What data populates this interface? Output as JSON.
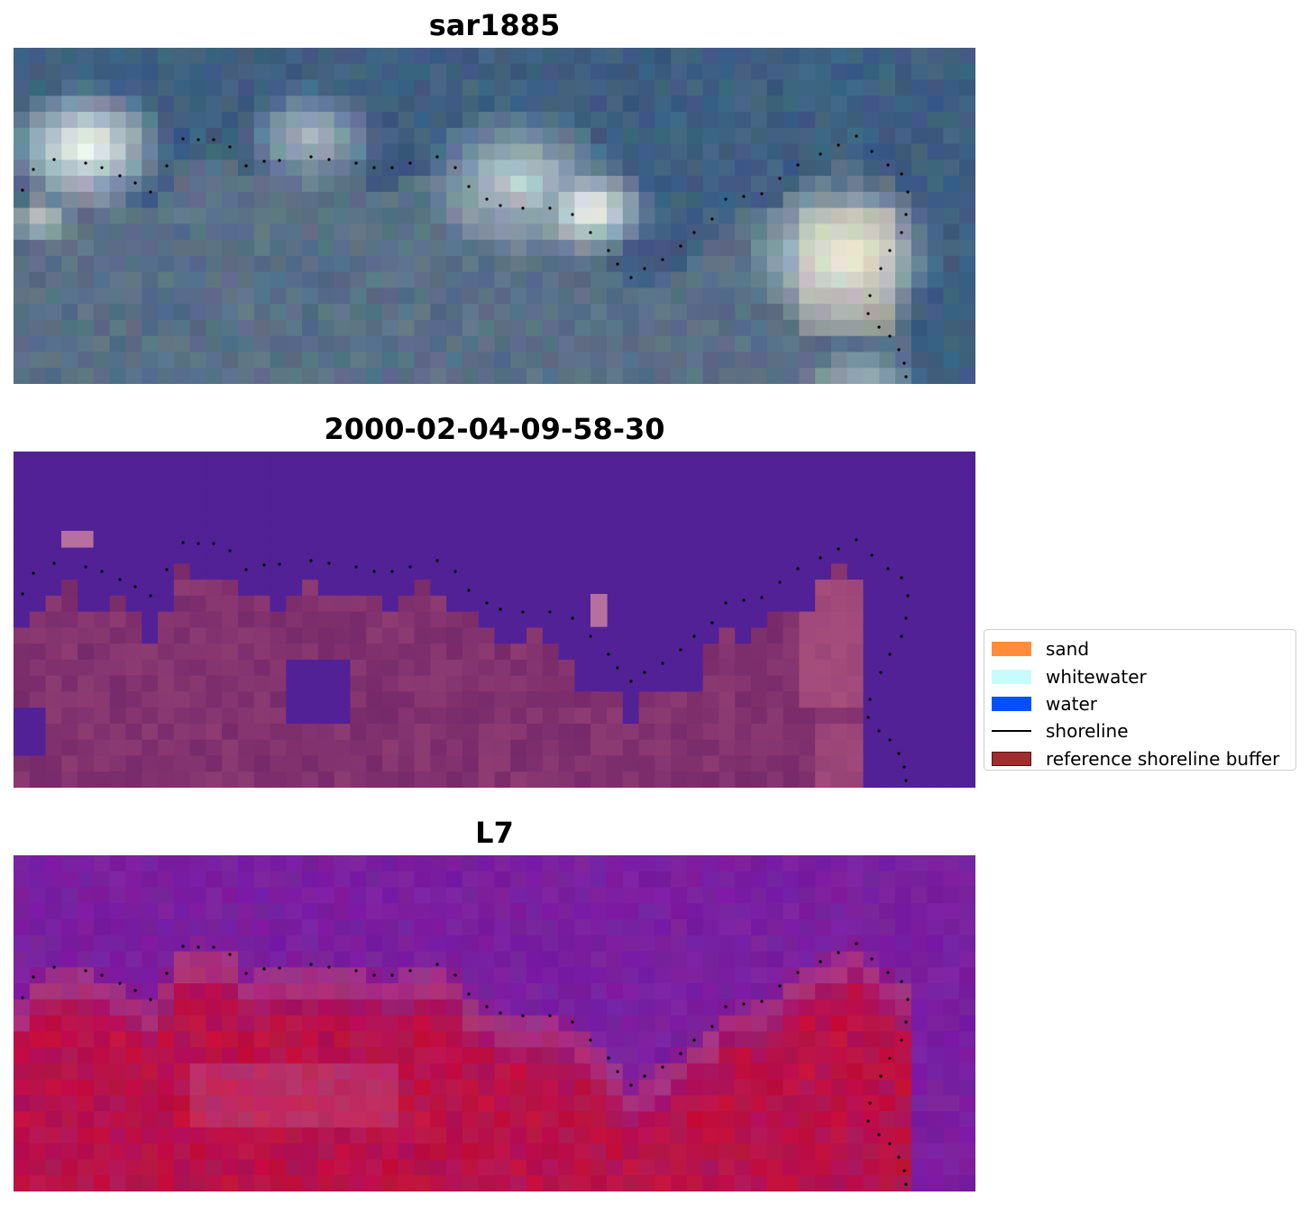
{
  "panels": [
    {
      "title": "sar1885"
    },
    {
      "title": "2000-02-04-09-58-30"
    },
    {
      "title": "L7"
    }
  ],
  "legend": {
    "items": [
      {
        "label": "sand",
        "color": "#ff8c3a",
        "kind": "patch"
      },
      {
        "label": "whitewater",
        "color": "#c8fcfc",
        "kind": "patch"
      },
      {
        "label": "water",
        "color": "#0050ff",
        "kind": "patch"
      },
      {
        "label": "shoreline",
        "color": "#000000",
        "kind": "line"
      },
      {
        "label": "reference shoreline buffer",
        "color": "#a02d2d",
        "kind": "patch"
      }
    ]
  },
  "colors": {
    "rgb_ocean": "#3c5a82",
    "rgb_whitewater": "#e8f8f8",
    "class_background": "#532196",
    "class_buffer": "#772a6a",
    "index_low": "#7a1fa0",
    "index_high": "#c0103f"
  }
}
